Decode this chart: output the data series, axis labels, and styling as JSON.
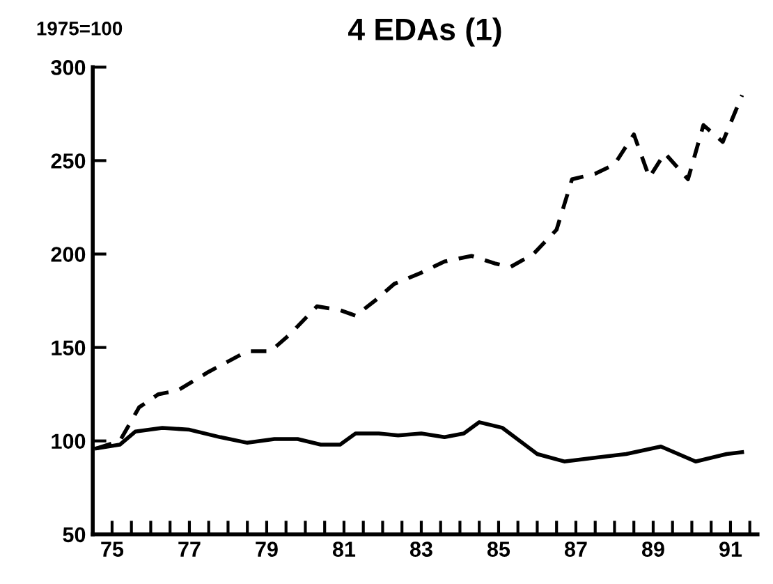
{
  "chart_data": {
    "type": "line",
    "title": "4 EDAs (1)",
    "ylabel": "1975=100",
    "xlim": [
      74.5,
      91.7
    ],
    "ylim": [
      50,
      300
    ],
    "yticks": [
      50,
      100,
      150,
      200,
      250,
      300
    ],
    "xticks": [
      {
        "value": 75,
        "label": "75"
      },
      {
        "value": 75.5,
        "label": null
      },
      {
        "value": 76,
        "label": null
      },
      {
        "value": 76.5,
        "label": null
      },
      {
        "value": 77,
        "label": "77"
      },
      {
        "value": 77.5,
        "label": null
      },
      {
        "value": 78,
        "label": null
      },
      {
        "value": 78.5,
        "label": null
      },
      {
        "value": 79,
        "label": "79"
      },
      {
        "value": 79.5,
        "label": null
      },
      {
        "value": 80,
        "label": null
      },
      {
        "value": 80.5,
        "label": null
      },
      {
        "value": 81,
        "label": "81"
      },
      {
        "value": 81.5,
        "label": null
      },
      {
        "value": 82,
        "label": null
      },
      {
        "value": 82.5,
        "label": null
      },
      {
        "value": 83,
        "label": "83"
      },
      {
        "value": 83.5,
        "label": null
      },
      {
        "value": 84,
        "label": null
      },
      {
        "value": 84.5,
        "label": null
      },
      {
        "value": 85,
        "label": "85"
      },
      {
        "value": 85.5,
        "label": null
      },
      {
        "value": 86,
        "label": null
      },
      {
        "value": 86.5,
        "label": null
      },
      {
        "value": 87,
        "label": "87"
      },
      {
        "value": 87.5,
        "label": null
      },
      {
        "value": 88,
        "label": null
      },
      {
        "value": 88.5,
        "label": null
      },
      {
        "value": 89,
        "label": "89"
      },
      {
        "value": 89.5,
        "label": null
      },
      {
        "value": 90,
        "label": null
      },
      {
        "value": 90.5,
        "label": null
      },
      {
        "value": 91,
        "label": "91"
      },
      {
        "value": 91.5,
        "label": null
      }
    ],
    "grid": false,
    "series": [
      {
        "color": "#000000",
        "line_style": "dashed",
        "x": [
          74.6,
          75.2,
          75.7,
          76.2,
          76.7,
          77.5,
          78.5,
          79.1,
          79.6,
          80.3,
          80.9,
          81.3,
          81.8,
          82.3,
          83,
          83.6,
          84.3,
          84.9,
          85.3,
          85.9,
          86.5,
          86.9,
          87.5,
          88,
          88.5,
          88.9,
          89.3,
          89.9,
          90.3,
          90.8,
          91.3
        ],
        "values": [
          96,
          100,
          118,
          125,
          127,
          137,
          148,
          148,
          157,
          172,
          170,
          167,
          175,
          184,
          190,
          196,
          199,
          195,
          193,
          200,
          213,
          240,
          243,
          248,
          264,
          241,
          254,
          240,
          269,
          260,
          285
        ]
      },
      {
        "color": "#000000",
        "line_style": "solid",
        "x": [
          74.6,
          75.2,
          75.6,
          76.3,
          77,
          77.8,
          78.5,
          79.2,
          79.8,
          80.4,
          80.9,
          81.3,
          81.9,
          82.4,
          83,
          83.6,
          84.1,
          84.5,
          85.1,
          86,
          86.7,
          87.5,
          88.3,
          89.2,
          90.1,
          90.9,
          91.3
        ],
        "values": [
          96,
          98,
          105,
          107,
          106,
          102,
          99,
          101,
          101,
          98,
          98,
          104,
          104,
          103,
          104,
          102,
          104,
          110,
          107,
          93,
          89,
          91,
          93,
          97,
          89,
          93,
          94
        ]
      }
    ]
  }
}
